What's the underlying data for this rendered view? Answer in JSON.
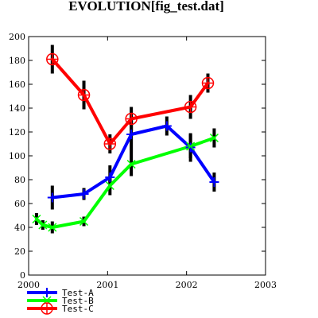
{
  "chart_data": {
    "type": "line",
    "title": "EVOLUTION[fig_test.dat]",
    "xlabel": "",
    "ylabel": "",
    "xlim": [
      2000,
      2003
    ],
    "ylim": [
      0,
      200
    ],
    "x_ticks": [
      "2000",
      "2001",
      "2002",
      "2003"
    ],
    "y_ticks": [
      "0",
      "20",
      "40",
      "60",
      "80",
      "100",
      "120",
      "140",
      "160",
      "180",
      "200"
    ],
    "grid": false,
    "legend_position": "bottom-left",
    "series": [
      {
        "name": "Test-A",
        "color": "#0000ff",
        "marker": "plus",
        "x": [
          2000.3,
          2000.7,
          2001.03,
          2001.3,
          2001.75,
          2002.05,
          2002.35
        ],
        "y": [
          65,
          68,
          82,
          118,
          125,
          107,
          78
        ],
        "error": [
          10,
          5,
          10,
          15,
          8,
          12,
          8
        ]
      },
      {
        "name": "Test-B",
        "color": "#00ff00",
        "marker": "x",
        "x": [
          2000.1,
          2000.18,
          2000.3,
          2000.7,
          2001.03,
          2001.3,
          2002.05,
          2002.35
        ],
        "y": [
          47,
          42,
          40,
          45,
          75,
          93,
          108,
          115
        ],
        "error": [
          5,
          4,
          5,
          4,
          8,
          10,
          10,
          8
        ]
      },
      {
        "name": "Test-C",
        "color": "#ff0000",
        "marker": "circle-plus",
        "x": [
          2000.3,
          2000.7,
          2001.03,
          2001.3,
          2002.05,
          2002.27
        ],
        "y": [
          181,
          151,
          110,
          131,
          141,
          161
        ],
        "error": [
          12,
          12,
          8,
          10,
          10,
          8
        ]
      }
    ]
  }
}
